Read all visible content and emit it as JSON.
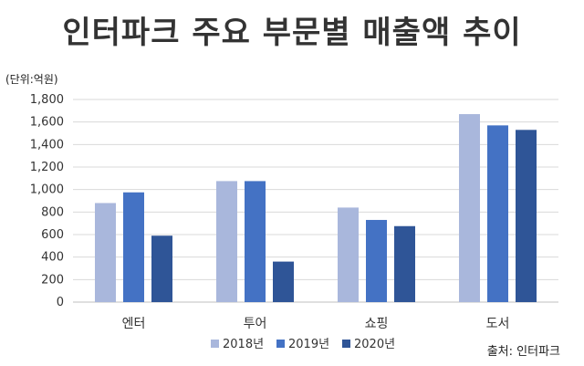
{
  "chart_data": {
    "type": "bar",
    "title": "인터파크 주요 부문별 매출액 추이",
    "unit_label": "(단위:억원)",
    "source": "출처: 인터파크",
    "categories": [
      "엔터",
      "투어",
      "쇼핑",
      "도서"
    ],
    "series": [
      {
        "name": "2018년",
        "color": "#a9b7dc",
        "values": [
          880,
          1075,
          840,
          1670
        ]
      },
      {
        "name": "2019년",
        "color": "#4472c4",
        "values": [
          975,
          1075,
          730,
          1570
        ]
      },
      {
        "name": "2020년",
        "color": "#2f5597",
        "values": [
          590,
          360,
          675,
          1530
        ]
      }
    ],
    "ylim": [
      0,
      1800
    ],
    "yticks": [
      "0",
      "200",
      "400",
      "600",
      "800",
      "1,000",
      "1,200",
      "1,400",
      "1,600",
      "1,800"
    ],
    "grid": true,
    "legend_position": "bottom"
  }
}
